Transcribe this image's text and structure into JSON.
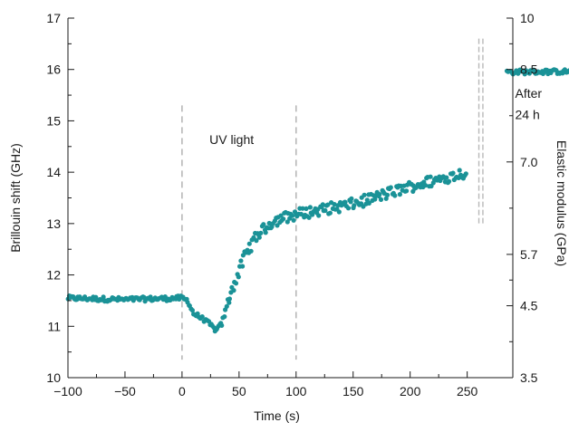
{
  "chart_data": {
    "type": "scatter",
    "xlabel": "Time (s)",
    "ylabel": "Brillouin shift (GHz)",
    "y2label": "Elastic modulus (GPa)",
    "xlim": [
      -100,
      290
    ],
    "ylim": [
      10,
      17
    ],
    "x_ticks": [
      -100,
      -50,
      0,
      50,
      100,
      150,
      200,
      250
    ],
    "x_tick_labels": [
      "−100",
      "−50",
      "0",
      "50",
      "100",
      "150",
      "200",
      "250"
    ],
    "x_minor_ticks": [
      -75,
      -25,
      25,
      75,
      125,
      175,
      225
    ],
    "y_ticks": [
      10,
      11,
      12,
      13,
      14,
      15,
      16,
      17
    ],
    "y2_ticks": [
      {
        "label": "10",
        "at_shift": 17.0
      },
      {
        "label": "8.5",
        "at_shift": 16.0
      },
      {
        "label": "7.0",
        "at_shift": 14.2
      },
      {
        "label": "5.7",
        "at_shift": 12.4
      },
      {
        "label": "4.5",
        "at_shift": 11.4
      },
      {
        "label": "3.5",
        "at_shift": 10.0
      }
    ],
    "vlines": [
      0,
      100
    ],
    "double_vline": {
      "x": 262,
      "y_range": [
        13.0,
        16.6
      ]
    },
    "annotations": [
      {
        "text": "UV light",
        "x": 24,
        "y": 14.55
      },
      {
        "text": "After",
        "x": 292,
        "y": 15.45
      },
      {
        "text": "24 h",
        "x": 292,
        "y": 15.03
      }
    ],
    "marker_color": "#1a9297",
    "dashed_color": "#b8b8b8",
    "series": [
      {
        "segments": [
          {
            "points": [
              [
                -100,
                11.55
              ],
              [
                -50,
                11.52
              ],
              [
                0,
                11.55
              ]
            ]
          },
          {
            "points": [
              [
                0,
                11.55
              ],
              [
                5,
                11.5
              ],
              [
                10,
                11.25
              ],
              [
                20,
                11.12
              ],
              [
                30,
                10.92
              ],
              [
                35,
                11.05
              ],
              [
                40,
                11.45
              ],
              [
                45,
                11.8
              ],
              [
                55,
                12.35
              ],
              [
                65,
                12.75
              ],
              [
                80,
                13.05
              ],
              [
                100,
                13.18
              ],
              [
                150,
                13.38
              ],
              [
                200,
                13.72
              ],
              [
                250,
                14.0
              ]
            ]
          },
          {
            "points": [
              [
                285,
                15.95
              ],
              [
                387,
                15.97
              ]
            ]
          }
        ]
      }
    ]
  }
}
